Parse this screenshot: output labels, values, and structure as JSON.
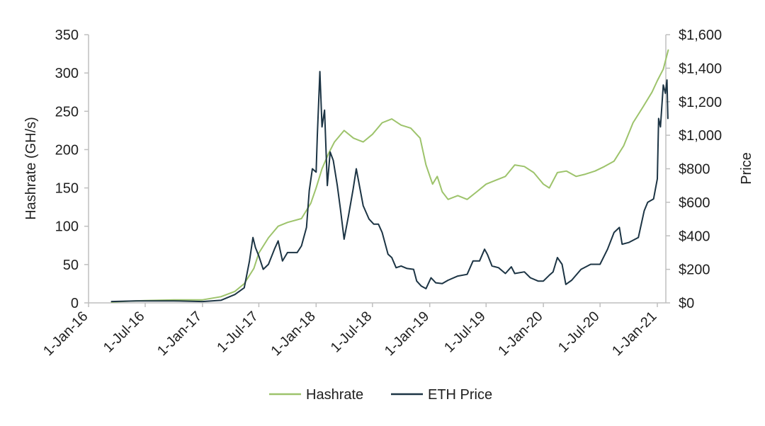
{
  "chart_data": {
    "type": "line",
    "title": "",
    "xlabel": "",
    "ylabel": "Hashrate (GH/s)",
    "y2label": "Price",
    "ylim": [
      0,
      350
    ],
    "y2lim": [
      0,
      1600
    ],
    "yticks": [
      "0",
      "50",
      "100",
      "150",
      "200",
      "250",
      "300",
      "350"
    ],
    "y2ticks": [
      "$0",
      "$200",
      "$400",
      "$600",
      "$800",
      "$1,000",
      "$1,200",
      "$1,400",
      "$1,600"
    ],
    "xticks": [
      "1-Jan-16",
      "1-Jul-16",
      "1-Jan-17",
      "1-Jul-17",
      "1-Jan-18",
      "1-Jul-18",
      "1-Jan-19",
      "1-Jul-19",
      "1-Jan-20",
      "1-Jul-20",
      "1-Jan-21"
    ],
    "grid": false,
    "legend": "bottom",
    "colors": {
      "hashrate": "#9dc36b",
      "eth_price": "#1c3444",
      "axis": "#bfbfbf",
      "text": "#1f1f1f"
    },
    "series": [
      {
        "name": "Hashrate",
        "axis": "left",
        "points": [
          [
            "2016-03-15",
            1
          ],
          [
            "2016-05-01",
            2
          ],
          [
            "2016-07-01",
            3
          ],
          [
            "2016-10-01",
            4
          ],
          [
            "2017-01-01",
            4
          ],
          [
            "2017-03-01",
            8
          ],
          [
            "2017-04-15",
            15
          ],
          [
            "2017-05-15",
            25
          ],
          [
            "2017-06-15",
            45
          ],
          [
            "2017-07-01",
            65
          ],
          [
            "2017-08-01",
            85
          ],
          [
            "2017-09-01",
            100
          ],
          [
            "2017-10-01",
            105
          ],
          [
            "2017-11-15",
            110
          ],
          [
            "2017-12-15",
            130
          ],
          [
            "2018-01-01",
            150
          ],
          [
            "2018-01-20",
            175
          ],
          [
            "2018-02-10",
            195
          ],
          [
            "2018-03-01",
            210
          ],
          [
            "2018-04-01",
            225
          ],
          [
            "2018-05-01",
            215
          ],
          [
            "2018-06-01",
            210
          ],
          [
            "2018-07-01",
            220
          ],
          [
            "2018-08-01",
            235
          ],
          [
            "2018-09-01",
            240
          ],
          [
            "2018-10-01",
            232
          ],
          [
            "2018-11-01",
            228
          ],
          [
            "2018-12-01",
            215
          ],
          [
            "2018-12-20",
            180
          ],
          [
            "2019-01-10",
            155
          ],
          [
            "2019-01-25",
            165
          ],
          [
            "2019-02-10",
            145
          ],
          [
            "2019-03-01",
            135
          ],
          [
            "2019-04-01",
            140
          ],
          [
            "2019-05-01",
            135
          ],
          [
            "2019-06-01",
            145
          ],
          [
            "2019-07-01",
            155
          ],
          [
            "2019-08-01",
            160
          ],
          [
            "2019-09-01",
            165
          ],
          [
            "2019-10-01",
            180
          ],
          [
            "2019-11-01",
            178
          ],
          [
            "2019-12-01",
            170
          ],
          [
            "2020-01-01",
            155
          ],
          [
            "2020-01-20",
            150
          ],
          [
            "2020-02-15",
            170
          ],
          [
            "2020-03-15",
            172
          ],
          [
            "2020-04-15",
            165
          ],
          [
            "2020-05-15",
            168
          ],
          [
            "2020-06-15",
            172
          ],
          [
            "2020-07-15",
            178
          ],
          [
            "2020-08-15",
            185
          ],
          [
            "2020-09-15",
            205
          ],
          [
            "2020-10-15",
            235
          ],
          [
            "2020-11-15",
            255
          ],
          [
            "2020-12-15",
            275
          ],
          [
            "2021-01-01",
            290
          ],
          [
            "2021-01-20",
            305
          ],
          [
            "2021-02-05",
            330
          ]
        ]
      },
      {
        "name": "ETH Price",
        "axis": "right",
        "points": [
          [
            "2016-03-15",
            8
          ],
          [
            "2016-06-01",
            12
          ],
          [
            "2016-07-01",
            12
          ],
          [
            "2016-10-01",
            12
          ],
          [
            "2017-01-01",
            8
          ],
          [
            "2017-03-01",
            15
          ],
          [
            "2017-04-15",
            50
          ],
          [
            "2017-05-15",
            90
          ],
          [
            "2017-06-01",
            250
          ],
          [
            "2017-06-12",
            390
          ],
          [
            "2017-06-20",
            330
          ],
          [
            "2017-07-01",
            280
          ],
          [
            "2017-07-15",
            200
          ],
          [
            "2017-08-01",
            230
          ],
          [
            "2017-08-20",
            320
          ],
          [
            "2017-09-01",
            370
          ],
          [
            "2017-09-15",
            250
          ],
          [
            "2017-10-01",
            300
          ],
          [
            "2017-11-01",
            300
          ],
          [
            "2017-11-15",
            340
          ],
          [
            "2017-12-01",
            450
          ],
          [
            "2017-12-10",
            670
          ],
          [
            "2017-12-20",
            800
          ],
          [
            "2018-01-01",
            780
          ],
          [
            "2018-01-05",
            1000
          ],
          [
            "2018-01-13",
            1380
          ],
          [
            "2018-01-20",
            1050
          ],
          [
            "2018-01-28",
            1150
          ],
          [
            "2018-02-06",
            700
          ],
          [
            "2018-02-15",
            900
          ],
          [
            "2018-02-25",
            850
          ],
          [
            "2018-03-10",
            700
          ],
          [
            "2018-03-20",
            560
          ],
          [
            "2018-04-01",
            380
          ],
          [
            "2018-04-15",
            520
          ],
          [
            "2018-04-30",
            680
          ],
          [
            "2018-05-10",
            800
          ],
          [
            "2018-05-20",
            700
          ],
          [
            "2018-06-01",
            580
          ],
          [
            "2018-06-20",
            500
          ],
          [
            "2018-07-05",
            470
          ],
          [
            "2018-07-20",
            470
          ],
          [
            "2018-08-01",
            420
          ],
          [
            "2018-08-20",
            290
          ],
          [
            "2018-09-01",
            270
          ],
          [
            "2018-09-15",
            210
          ],
          [
            "2018-10-01",
            220
          ],
          [
            "2018-10-20",
            205
          ],
          [
            "2018-11-10",
            200
          ],
          [
            "2018-11-20",
            130
          ],
          [
            "2018-12-05",
            100
          ],
          [
            "2018-12-20",
            85
          ],
          [
            "2019-01-05",
            150
          ],
          [
            "2019-01-20",
            120
          ],
          [
            "2019-02-10",
            115
          ],
          [
            "2019-03-01",
            135
          ],
          [
            "2019-04-01",
            160
          ],
          [
            "2019-05-01",
            170
          ],
          [
            "2019-05-20",
            250
          ],
          [
            "2019-06-10",
            250
          ],
          [
            "2019-06-26",
            320
          ],
          [
            "2019-07-05",
            290
          ],
          [
            "2019-07-20",
            220
          ],
          [
            "2019-08-10",
            210
          ],
          [
            "2019-09-01",
            175
          ],
          [
            "2019-09-20",
            215
          ],
          [
            "2019-10-01",
            175
          ],
          [
            "2019-11-01",
            185
          ],
          [
            "2019-11-20",
            150
          ],
          [
            "2019-12-15",
            130
          ],
          [
            "2020-01-01",
            130
          ],
          [
            "2020-01-20",
            165
          ],
          [
            "2020-02-01",
            185
          ],
          [
            "2020-02-15",
            270
          ],
          [
            "2020-03-01",
            230
          ],
          [
            "2020-03-13",
            110
          ],
          [
            "2020-04-01",
            135
          ],
          [
            "2020-05-01",
            200
          ],
          [
            "2020-06-01",
            230
          ],
          [
            "2020-07-01",
            230
          ],
          [
            "2020-07-25",
            320
          ],
          [
            "2020-08-15",
            420
          ],
          [
            "2020-09-01",
            450
          ],
          [
            "2020-09-10",
            350
          ],
          [
            "2020-10-01",
            360
          ],
          [
            "2020-11-01",
            390
          ],
          [
            "2020-11-20",
            550
          ],
          [
            "2020-12-01",
            600
          ],
          [
            "2020-12-20",
            620
          ],
          [
            "2021-01-01",
            740
          ],
          [
            "2021-01-05",
            1100
          ],
          [
            "2021-01-11",
            1050
          ],
          [
            "2021-01-20",
            1300
          ],
          [
            "2021-01-27",
            1250
          ],
          [
            "2021-02-01",
            1330
          ],
          [
            "2021-02-04",
            1100
          ]
        ]
      }
    ]
  }
}
